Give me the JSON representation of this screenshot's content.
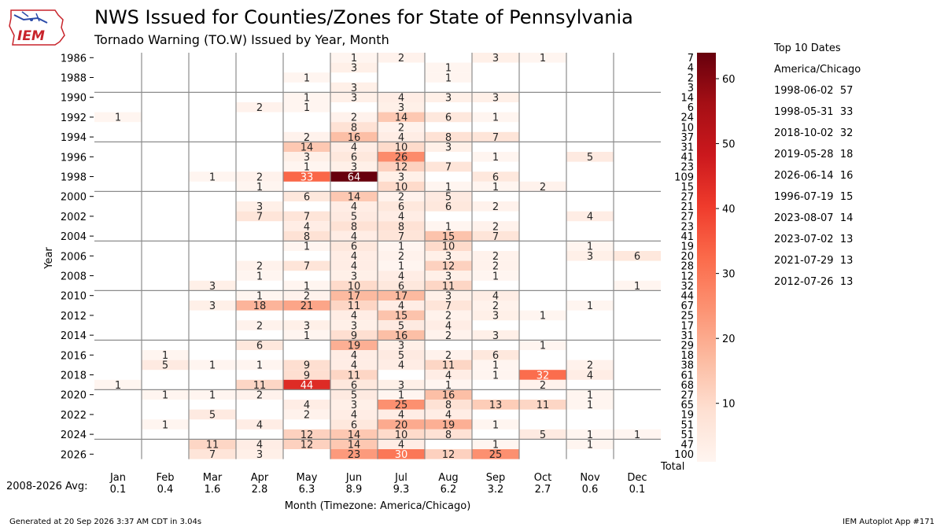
{
  "title": "NWS Issued for Counties/Zones for State of Pennsylvania",
  "subtitle": "Tornado Warning (TO.W) Issued by Year, Month",
  "logo_text": "IEM",
  "footer_left": "Generated at 20 Sep 2026 3:37 AM CDT in 3.04s",
  "footer_right": "IEM Autoplot App #171",
  "avg_label": "2008-2026 Avg:",
  "top10": {
    "title": "Top 10 Dates",
    "timezone": "America/Chicago",
    "entries": [
      {
        "date": "1998-06-02",
        "count": 57
      },
      {
        "date": "1998-05-31",
        "count": 33
      },
      {
        "date": "2018-10-02",
        "count": 32
      },
      {
        "date": "2019-05-28",
        "count": 18
      },
      {
        "date": "2026-06-14",
        "count": 16
      },
      {
        "date": "1996-07-19",
        "count": 15
      },
      {
        "date": "2023-08-07",
        "count": 14
      },
      {
        "date": "2023-07-02",
        "count": 13
      },
      {
        "date": "2021-07-29",
        "count": 13
      },
      {
        "date": "2012-07-26",
        "count": 13
      }
    ]
  },
  "chart_data": {
    "type": "heatmap",
    "xlabel": "Month (Timezone: America/Chicago)",
    "ylabel": "Year",
    "total_label": "Total",
    "months": [
      "Jan",
      "Feb",
      "Mar",
      "Apr",
      "May",
      "Jun",
      "Jul",
      "Aug",
      "Sep",
      "Oct",
      "Nov",
      "Dec"
    ],
    "years": [
      1986,
      1987,
      1988,
      1989,
      1990,
      1991,
      1992,
      1993,
      1994,
      1995,
      1996,
      1997,
      1998,
      1999,
      2000,
      2001,
      2002,
      2003,
      2004,
      2005,
      2006,
      2007,
      2008,
      2009,
      2010,
      2011,
      2012,
      2013,
      2014,
      2015,
      2016,
      2017,
      2018,
      2019,
      2020,
      2021,
      2022,
      2023,
      2024,
      2025,
      2026
    ],
    "year_tick_labels": [
      "1986",
      "1988",
      "1990",
      "1992",
      "1994",
      "1996",
      "1998",
      "2000",
      "2002",
      "2004",
      "2006",
      "2008",
      "2010",
      "2012",
      "2014",
      "2016",
      "2018",
      "2020",
      "2022",
      "2024",
      "2026"
    ],
    "values": [
      [
        0,
        0,
        0,
        0,
        0,
        1,
        2,
        0,
        3,
        1,
        0,
        0
      ],
      [
        0,
        0,
        0,
        0,
        0,
        3,
        0,
        1,
        0,
        0,
        0,
        0
      ],
      [
        0,
        0,
        0,
        0,
        1,
        0,
        0,
        1,
        0,
        0,
        0,
        0
      ],
      [
        0,
        0,
        0,
        0,
        0,
        3,
        0,
        0,
        0,
        0,
        0,
        0
      ],
      [
        0,
        0,
        0,
        0,
        1,
        3,
        4,
        3,
        3,
        0,
        0,
        0
      ],
      [
        0,
        0,
        0,
        2,
        1,
        0,
        3,
        0,
        0,
        0,
        0,
        0
      ],
      [
        1,
        0,
        0,
        0,
        0,
        2,
        14,
        6,
        1,
        0,
        0,
        0
      ],
      [
        0,
        0,
        0,
        0,
        0,
        8,
        2,
        0,
        0,
        0,
        0,
        0
      ],
      [
        0,
        0,
        0,
        0,
        2,
        16,
        4,
        8,
        7,
        0,
        0,
        0
      ],
      [
        0,
        0,
        0,
        0,
        14,
        4,
        10,
        3,
        0,
        0,
        0,
        0
      ],
      [
        0,
        0,
        0,
        0,
        3,
        6,
        26,
        0,
        1,
        0,
        5,
        0
      ],
      [
        0,
        0,
        0,
        0,
        1,
        3,
        12,
        7,
        0,
        0,
        0,
        0
      ],
      [
        0,
        0,
        1,
        2,
        33,
        64,
        3,
        0,
        6,
        0,
        0,
        0
      ],
      [
        0,
        0,
        0,
        1,
        0,
        0,
        10,
        1,
        1,
        2,
        0,
        0
      ],
      [
        0,
        0,
        0,
        0,
        6,
        14,
        2,
        5,
        0,
        0,
        0,
        0
      ],
      [
        0,
        0,
        0,
        3,
        0,
        4,
        6,
        6,
        2,
        0,
        0,
        0
      ],
      [
        0,
        0,
        0,
        7,
        7,
        5,
        4,
        0,
        0,
        0,
        4,
        0
      ],
      [
        0,
        0,
        0,
        0,
        4,
        8,
        8,
        1,
        2,
        0,
        0,
        0
      ],
      [
        0,
        0,
        0,
        0,
        8,
        4,
        7,
        15,
        7,
        0,
        0,
        0
      ],
      [
        0,
        0,
        0,
        0,
        1,
        6,
        1,
        10,
        0,
        0,
        1,
        0
      ],
      [
        0,
        0,
        0,
        0,
        0,
        4,
        2,
        3,
        2,
        0,
        3,
        6
      ],
      [
        0,
        0,
        0,
        2,
        7,
        4,
        1,
        12,
        2,
        0,
        0,
        0
      ],
      [
        0,
        0,
        0,
        1,
        0,
        3,
        4,
        3,
        1,
        0,
        0,
        0
      ],
      [
        0,
        0,
        3,
        0,
        1,
        10,
        6,
        11,
        0,
        0,
        0,
        1
      ],
      [
        0,
        0,
        0,
        1,
        2,
        17,
        17,
        3,
        4,
        0,
        0,
        0
      ],
      [
        0,
        0,
        3,
        18,
        21,
        11,
        4,
        7,
        2,
        0,
        1,
        0
      ],
      [
        0,
        0,
        0,
        0,
        0,
        4,
        15,
        2,
        3,
        1,
        0,
        0
      ],
      [
        0,
        0,
        0,
        2,
        3,
        3,
        5,
        4,
        0,
        0,
        0,
        0
      ],
      [
        0,
        0,
        0,
        0,
        1,
        9,
        16,
        2,
        3,
        0,
        0,
        0
      ],
      [
        0,
        0,
        0,
        6,
        0,
        19,
        3,
        0,
        0,
        1,
        0,
        0
      ],
      [
        0,
        1,
        0,
        0,
        0,
        4,
        5,
        2,
        6,
        0,
        0,
        0
      ],
      [
        0,
        5,
        1,
        1,
        9,
        4,
        4,
        11,
        1,
        0,
        2,
        0
      ],
      [
        0,
        0,
        0,
        0,
        9,
        11,
        0,
        4,
        1,
        32,
        4,
        0
      ],
      [
        1,
        0,
        0,
        11,
        44,
        6,
        3,
        1,
        0,
        2,
        0,
        0
      ],
      [
        0,
        1,
        1,
        2,
        0,
        5,
        1,
        16,
        0,
        0,
        1,
        0
      ],
      [
        0,
        0,
        0,
        0,
        4,
        3,
        25,
        8,
        13,
        11,
        1,
        0
      ],
      [
        0,
        0,
        5,
        0,
        2,
        4,
        4,
        4,
        0,
        0,
        0,
        0
      ],
      [
        0,
        1,
        0,
        4,
        0,
        6,
        20,
        19,
        1,
        0,
        0,
        0
      ],
      [
        0,
        0,
        0,
        0,
        12,
        14,
        10,
        8,
        0,
        5,
        1,
        1
      ],
      [
        0,
        0,
        11,
        4,
        12,
        14,
        4,
        0,
        1,
        0,
        1,
        0
      ],
      [
        0,
        0,
        7,
        3,
        0,
        23,
        30,
        12,
        25,
        0,
        0,
        0
      ]
    ],
    "totals": [
      7,
      4,
      2,
      3,
      14,
      6,
      24,
      10,
      37,
      31,
      41,
      23,
      109,
      15,
      27,
      21,
      27,
      23,
      41,
      19,
      20,
      28,
      12,
      32,
      44,
      67,
      25,
      17,
      31,
      29,
      18,
      38,
      61,
      68,
      27,
      65,
      19,
      51,
      51,
      47,
      100
    ],
    "month_averages": [
      "0.1",
      "0.4",
      "1.6",
      "2.8",
      "6.3",
      "8.9",
      "9.3",
      "6.2",
      "3.2",
      "2.7",
      "0.6",
      "0.1"
    ],
    "colorbar": {
      "min": 1,
      "max": 64,
      "ticks": [
        10,
        20,
        30,
        40,
        50,
        60
      ],
      "colormap": "Reds"
    }
  }
}
